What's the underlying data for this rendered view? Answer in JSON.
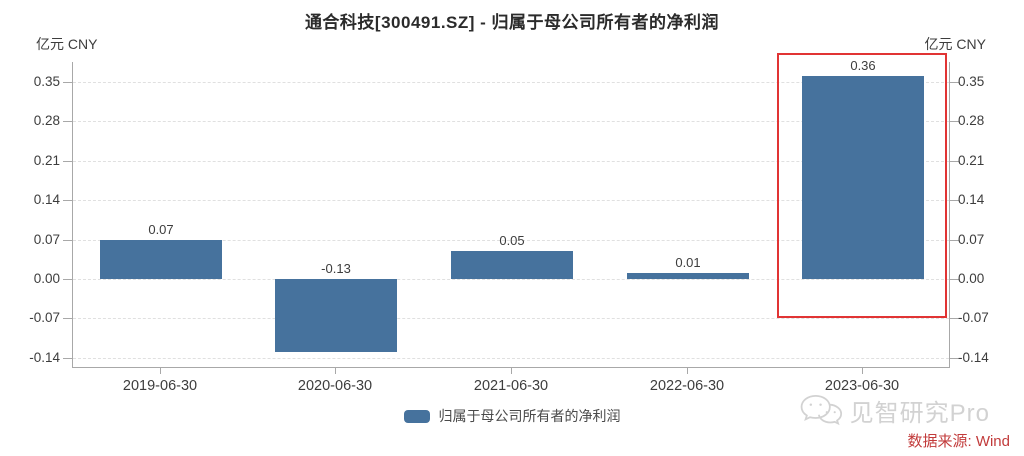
{
  "title": "通合科技[300491.SZ] - 归属于母公司所有者的净利润",
  "axes": {
    "unit_left": "亿元 CNY",
    "unit_right": "亿元 CNY",
    "y_tick_labels": [
      "0.35",
      "0.28",
      "0.21",
      "0.14",
      "0.07",
      "0.00",
      "-0.07",
      "-0.14"
    ]
  },
  "chart_data": {
    "type": "bar",
    "title": "通合科技[300491.SZ] - 归属于母公司所有者的净利润",
    "categories": [
      "2019-06-30",
      "2020-06-30",
      "2021-06-30",
      "2022-06-30",
      "2023-06-30"
    ],
    "values": [
      0.07,
      -0.13,
      0.05,
      0.01,
      0.36
    ],
    "data_labels": [
      "0.07",
      "-0.13",
      "0.05",
      "0.01",
      "0.36"
    ],
    "ylabel": "亿元 CNY",
    "y_ticks": [
      0.35,
      0.28,
      0.21,
      0.14,
      0.07,
      0.0,
      -0.07,
      -0.14
    ],
    "ylim": [
      -0.158,
      0.3855
    ],
    "grid": true,
    "legend_entries": [
      "归属于母公司所有者的净利润"
    ],
    "legend_position": "bottom",
    "bar_color": "#46729d",
    "highlighted_category": "2023-06-30",
    "highlight_color": "#e13434"
  },
  "legend": {
    "label": "归属于母公司所有者的净利润",
    "swatch_color": "#46729d"
  },
  "watermark": {
    "brand": "见智研究Pro",
    "icon": "wechat-icon",
    "source": "数据来源: Wind"
  },
  "colors": {
    "bar": "#46729d",
    "highlight_box": "#e13434",
    "axis_line": "#a8a8a8",
    "gridline": "#e0e0e0",
    "text": "#3d3d3d",
    "watermark_gray": "#d2d2d2",
    "source_red": "#c23b3b"
  }
}
